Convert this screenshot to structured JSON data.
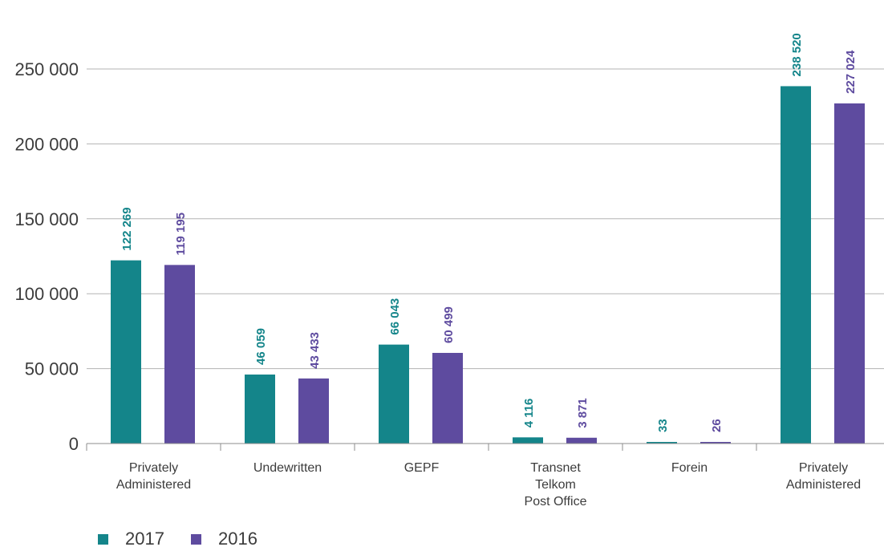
{
  "chart_data": {
    "type": "bar",
    "categories": [
      [
        "Privately",
        "Administered"
      ],
      [
        "Undewritten"
      ],
      [
        "GEPF"
      ],
      [
        "Transnet",
        "Telkom",
        "Post Office"
      ],
      [
        "Forein"
      ],
      [
        "Privately",
        "Administered"
      ]
    ],
    "series": [
      {
        "name": "2017",
        "color": "#14858a",
        "values": [
          122269,
          46059,
          66043,
          4116,
          33,
          238520
        ],
        "labels": [
          "122 269",
          "46 059",
          "66 043",
          "4 116",
          "33",
          "238 520"
        ]
      },
      {
        "name": "2016",
        "color": "#5e4b9f",
        "values": [
          119195,
          43433,
          60499,
          3871,
          26,
          227024
        ],
        "labels": [
          "119 195",
          "43 433",
          "60 499",
          "3 871",
          "26",
          "227 024"
        ]
      }
    ],
    "ylim": [
      0,
      250000
    ],
    "yticks": [
      0,
      50000,
      100000,
      150000,
      200000,
      250000
    ],
    "ytick_labels": [
      "0",
      "50 000",
      "100 000",
      "150 000",
      "200 000",
      "250 000"
    ],
    "grid": true,
    "legend": "bottom-left",
    "title": "",
    "xlabel": "",
    "ylabel": ""
  }
}
